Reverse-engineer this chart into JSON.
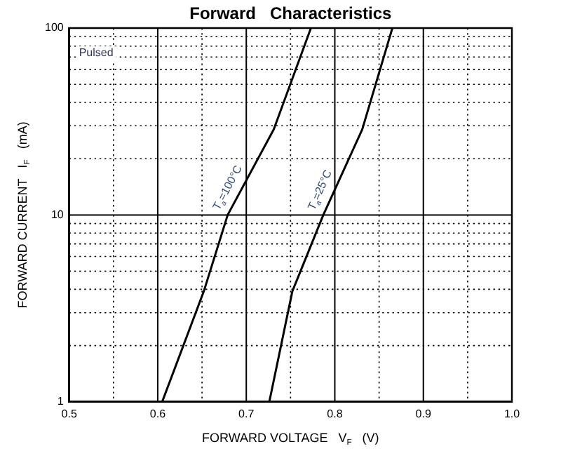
{
  "chart_data": {
    "type": "line",
    "title": "Forward   Characteristics",
    "xlabel": "FORWARD VOLTAGE   V$_{F}$   (V)",
    "ylabel": "FORWARD CURRENT   I$_{F}$   (mA)",
    "annotations": [
      "Pulsed"
    ],
    "series": [
      {
        "name": "T$_{a}$=100°C",
        "color": "#000000",
        "x": [
          0.605,
          0.652,
          0.679,
          0.731,
          0.773
        ],
        "values": [
          1,
          3.9,
          10,
          28.7,
          100
        ]
      },
      {
        "name": "T$_{a}$=25°C",
        "color": "#000000",
        "x": [
          0.726,
          0.752,
          0.787,
          0.831,
          0.865
        ],
        "values": [
          1,
          3.9,
          10,
          28.7,
          100
        ]
      }
    ],
    "xlim": [
      0.5,
      1.0
    ],
    "xticks": [
      0.5,
      {
        "value": 0.55,
        "label": null
      },
      0.6,
      {
        "value": 0.65,
        "label": null
      },
      0.7,
      {
        "value": 0.75,
        "label": null
      },
      0.8,
      {
        "value": 0.85,
        "label": null
      },
      0.9,
      {
        "value": 0.95,
        "label": null
      },
      {
        "value": 1.0,
        "label": "1.0"
      }
    ],
    "ylim": [
      1,
      100
    ],
    "yticks": [
      1,
      {
        "value": 2,
        "label": null
      },
      {
        "value": 3,
        "label": null
      },
      {
        "value": 4,
        "label": null
      },
      {
        "value": 5,
        "label": null
      },
      {
        "value": 6,
        "label": null
      },
      {
        "value": 7,
        "label": null
      },
      {
        "value": 8,
        "label": null
      },
      {
        "value": 9,
        "label": null
      },
      10,
      {
        "value": 20,
        "label": null
      },
      {
        "value": 30,
        "label": null
      },
      {
        "value": 40,
        "label": null
      },
      {
        "value": 50,
        "label": null
      },
      {
        "value": 60,
        "label": null
      },
      {
        "value": 70,
        "label": null
      },
      {
        "value": 80,
        "label": null
      },
      {
        "value": 90,
        "label": null
      },
      100
    ],
    "log": "y",
    "grid": true,
    "legend": false,
    "marker": "none",
    "line_style": "solid"
  }
}
